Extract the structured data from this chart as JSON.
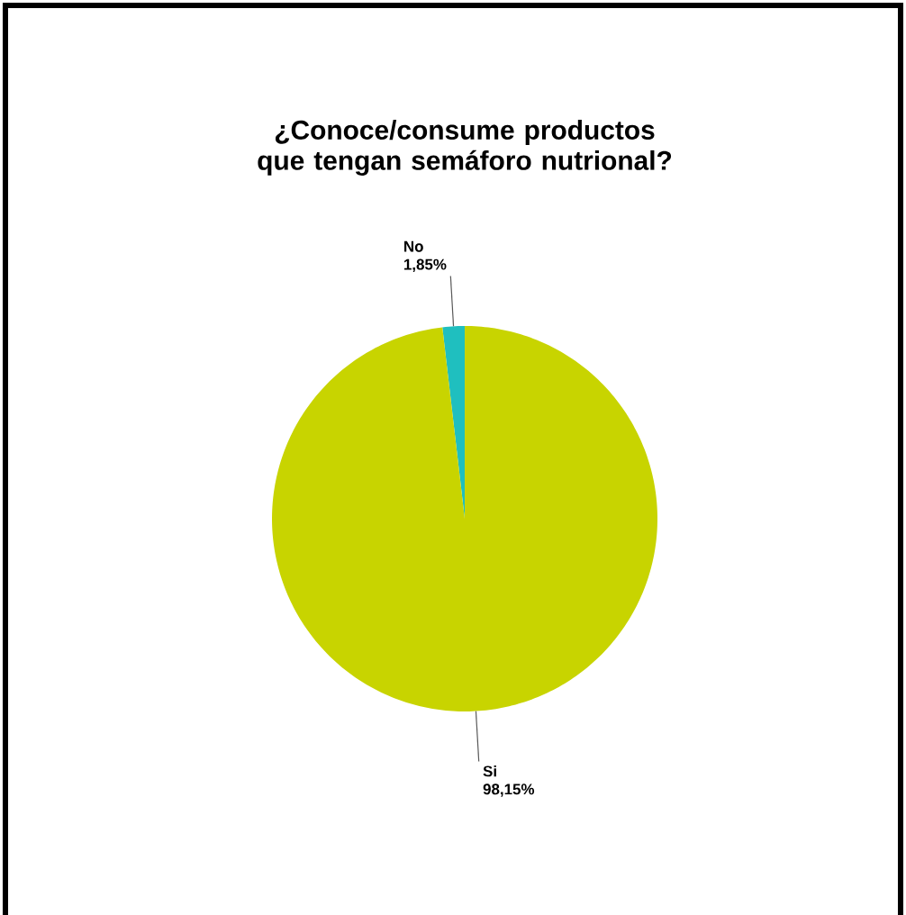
{
  "chart_data": {
    "type": "pie",
    "title": "¿Conoce/consume productos que tengan semáforo nutrional?",
    "categories": [
      "No",
      "Si"
    ],
    "values": [
      1.85,
      98.15
    ],
    "value_labels": [
      "1,85%",
      "98,15%"
    ],
    "colors": [
      "#1fbfbf",
      "#c8d400"
    ]
  }
}
